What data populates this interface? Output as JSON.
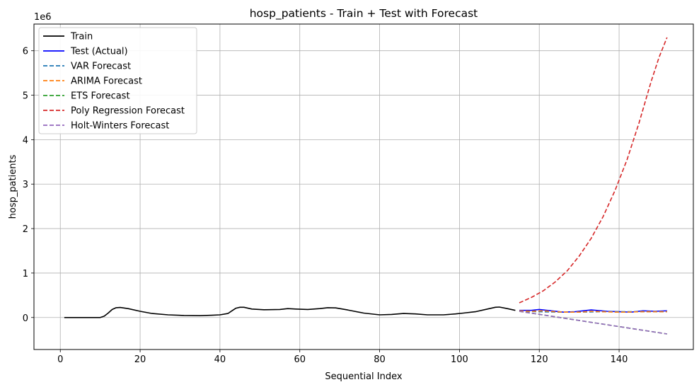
{
  "chart_data": {
    "type": "line",
    "title": "hosp_patients - Train + Test with Forecast",
    "xlabel": "Sequential Index",
    "ylabel": "hosp_patients",
    "y_offset_label": "1e6",
    "xlim": [
      -6.6,
      158.6
    ],
    "ylim": [
      -0.72,
      6.6
    ],
    "xticks": [
      0,
      20,
      40,
      60,
      80,
      100,
      120,
      140
    ],
    "yticks": [
      0,
      1,
      2,
      3,
      4,
      5,
      6
    ],
    "grid": true,
    "legend_position": "top-left",
    "series": [
      {
        "name": "Train",
        "color": "#000000",
        "dash": "solid",
        "points": [
          [
            1,
            0
          ],
          [
            5,
            0
          ],
          [
            10,
            0
          ],
          [
            11,
            0.03
          ],
          [
            12,
            0.1
          ],
          [
            13,
            0.18
          ],
          [
            14,
            0.22
          ],
          [
            15,
            0.225
          ],
          [
            17,
            0.2
          ],
          [
            20,
            0.14
          ],
          [
            23,
            0.09
          ],
          [
            27,
            0.06
          ],
          [
            31,
            0.045
          ],
          [
            35,
            0.04
          ],
          [
            38,
            0.05
          ],
          [
            40,
            0.06
          ],
          [
            42,
            0.09
          ],
          [
            43,
            0.15
          ],
          [
            44,
            0.21
          ],
          [
            45,
            0.23
          ],
          [
            46,
            0.23
          ],
          [
            48,
            0.19
          ],
          [
            51,
            0.175
          ],
          [
            55,
            0.18
          ],
          [
            57,
            0.2
          ],
          [
            59,
            0.19
          ],
          [
            62,
            0.18
          ],
          [
            65,
            0.2
          ],
          [
            67,
            0.22
          ],
          [
            69,
            0.215
          ],
          [
            72,
            0.17
          ],
          [
            76,
            0.1
          ],
          [
            80,
            0.06
          ],
          [
            83,
            0.07
          ],
          [
            86,
            0.09
          ],
          [
            89,
            0.08
          ],
          [
            92,
            0.06
          ],
          [
            96,
            0.06
          ],
          [
            99,
            0.08
          ],
          [
            101,
            0.1
          ],
          [
            104,
            0.13
          ],
          [
            107,
            0.19
          ],
          [
            109,
            0.23
          ],
          [
            110,
            0.235
          ],
          [
            112,
            0.2
          ],
          [
            114,
            0.16
          ]
        ]
      },
      {
        "name": "Test (Actual)",
        "color": "#0000ff",
        "dash": "solid",
        "points": [
          [
            115,
            0.16
          ],
          [
            118,
            0.16
          ],
          [
            120,
            0.18
          ],
          [
            123,
            0.15
          ],
          [
            126,
            0.12
          ],
          [
            129,
            0.13
          ],
          [
            133,
            0.17
          ],
          [
            137,
            0.14
          ],
          [
            140,
            0.13
          ],
          [
            143,
            0.12
          ],
          [
            146,
            0.15
          ],
          [
            149,
            0.14
          ],
          [
            152,
            0.15
          ]
        ]
      },
      {
        "name": "VAR Forecast",
        "color": "#1f77b4",
        "dash": "dashed",
        "points": [
          [
            115,
            0.14
          ],
          [
            120,
            0.13
          ],
          [
            125,
            0.12
          ],
          [
            130,
            0.12
          ],
          [
            135,
            0.13
          ],
          [
            140,
            0.13
          ],
          [
            145,
            0.13
          ],
          [
            150,
            0.13
          ],
          [
            152,
            0.13
          ]
        ]
      },
      {
        "name": "ARIMA Forecast",
        "color": "#ff7f0e",
        "dash": "dashed",
        "points": [
          [
            115,
            0.15
          ],
          [
            118,
            0.14
          ],
          [
            121,
            0.15
          ],
          [
            124,
            0.13
          ],
          [
            127,
            0.12
          ],
          [
            130,
            0.12
          ],
          [
            133,
            0.14
          ],
          [
            136,
            0.13
          ],
          [
            139,
            0.12
          ],
          [
            142,
            0.12
          ],
          [
            145,
            0.13
          ],
          [
            148,
            0.13
          ],
          [
            152,
            0.13
          ]
        ]
      },
      {
        "name": "ETS Forecast",
        "color": "#2ca02c",
        "dash": "dashed",
        "points": [
          [
            115,
            0.14
          ],
          [
            152,
            -0.37
          ]
        ]
      },
      {
        "name": "Poly Regression Forecast",
        "color": "#d62728",
        "dash": "dashed",
        "points": [
          [
            115,
            0.33
          ],
          [
            118,
            0.45
          ],
          [
            121,
            0.6
          ],
          [
            124,
            0.8
          ],
          [
            127,
            1.05
          ],
          [
            130,
            1.38
          ],
          [
            133,
            1.78
          ],
          [
            136,
            2.27
          ],
          [
            139,
            2.86
          ],
          [
            142,
            3.55
          ],
          [
            145,
            4.38
          ],
          [
            148,
            5.3
          ],
          [
            150,
            5.85
          ],
          [
            152,
            6.3
          ]
        ]
      },
      {
        "name": "Holt-Winters Forecast",
        "color": "#9467bd",
        "dash": "dashed",
        "points": [
          [
            115,
            0.14
          ],
          [
            152,
            -0.37
          ]
        ]
      }
    ]
  }
}
